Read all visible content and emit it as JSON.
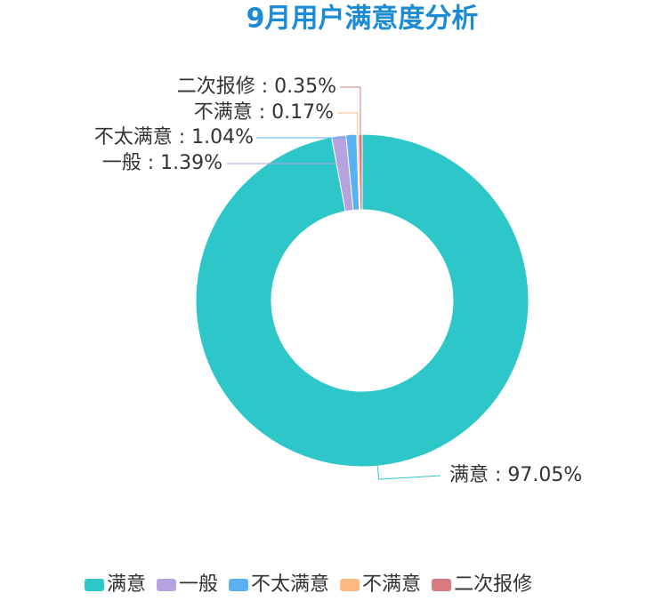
{
  "chart_data": {
    "type": "donut",
    "title": "9月用户满意度分析",
    "categories": [
      "满意",
      "一般",
      "不太满意",
      "不满意",
      "二次报修"
    ],
    "values": [
      97.05,
      1.39,
      1.04,
      0.17,
      0.35
    ],
    "value_labels": [
      "满意 : 97.05%",
      "一般 : 1.39%",
      "不太满意 : 1.04%",
      "不满意 : 0.17%",
      "二次报修 : 0.35%"
    ],
    "colors": [
      "#2ec7c9",
      "#b6a2de",
      "#5ab1ef",
      "#ffb980",
      "#d87a80"
    ],
    "legend": "bottom"
  }
}
